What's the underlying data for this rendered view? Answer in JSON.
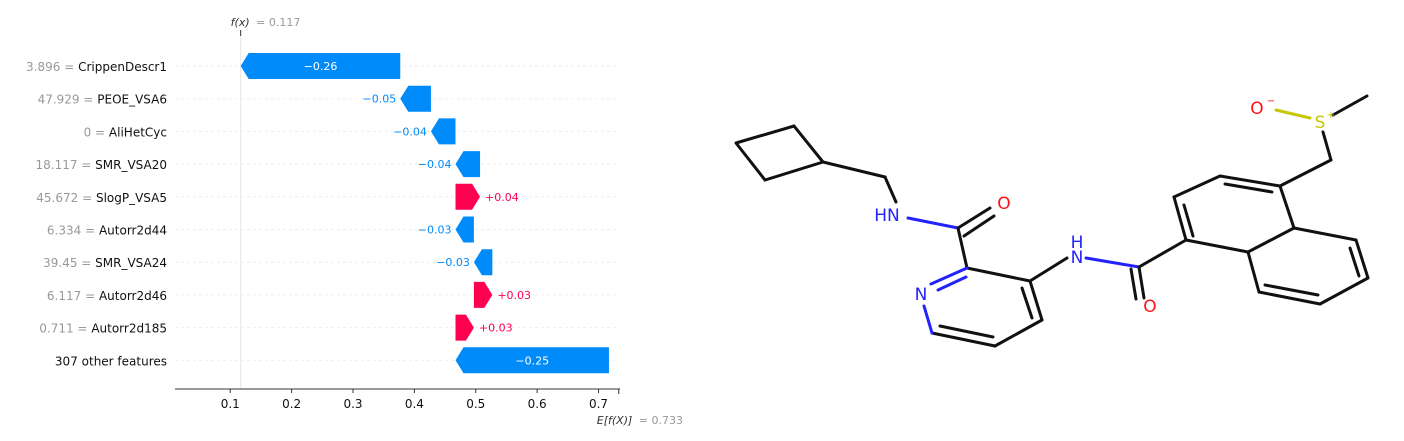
{
  "chart_data": {
    "type": "bar",
    "subtype": "shap-waterfall",
    "fx_prefix": "f(x)",
    "fx_value": "= 0.117",
    "ex_prefix": "E[f(X)]",
    "ex_value": "= 0.733",
    "base_value": 0.733,
    "final_value": 0.117,
    "xlim": [
      0.01,
      0.735
    ],
    "xticks": [
      0.1,
      0.2,
      0.3,
      0.4,
      0.5,
      0.6,
      0.7
    ],
    "grid": false,
    "features": [
      {
        "value": "3.896",
        "name": "CrippenDescr1",
        "shap": -0.26,
        "label": "−0.26"
      },
      {
        "value": "47.929",
        "name": "PEOE_VSA6",
        "shap": -0.05,
        "label": "−0.05"
      },
      {
        "value": "0",
        "name": "AliHetCyc",
        "shap": -0.04,
        "label": "−0.04"
      },
      {
        "value": "18.117",
        "name": "SMR_VSA20",
        "shap": -0.04,
        "label": "−0.04"
      },
      {
        "value": "45.672",
        "name": "SlogP_VSA5",
        "shap": 0.04,
        "label": "+0.04"
      },
      {
        "value": "6.334",
        "name": "Autorr2d44",
        "shap": -0.03,
        "label": "−0.03"
      },
      {
        "value": "39.45",
        "name": "SMR_VSA24",
        "shap": -0.03,
        "label": "−0.03"
      },
      {
        "value": "6.117",
        "name": "Autorr2d46",
        "shap": 0.03,
        "label": "+0.03"
      },
      {
        "value": "0.711",
        "name": "Autorr2d185",
        "shap": 0.03,
        "label": "+0.03"
      },
      {
        "value": "",
        "name": "307 other features",
        "shap": -0.25,
        "label": "−0.25"
      }
    ]
  },
  "colors": {
    "negative": "#008bfb",
    "positive": "#ff0051",
    "value_text": "#999999",
    "axis": "#333333",
    "bond": "#111111",
    "nitrogen": "#2222ff",
    "oxygen": "#ff1111",
    "sulfur": "#c8c800"
  },
  "molecule": {
    "atoms": {
      "HN_left": "HN",
      "O_amide_left": "O",
      "N_pyridine": "N",
      "NH_top": "N",
      "H_top": "H",
      "O_amide_right": "O",
      "O_sulfoxide": "O",
      "O_charge": "−",
      "S": "S",
      "S_charge": "+"
    }
  }
}
